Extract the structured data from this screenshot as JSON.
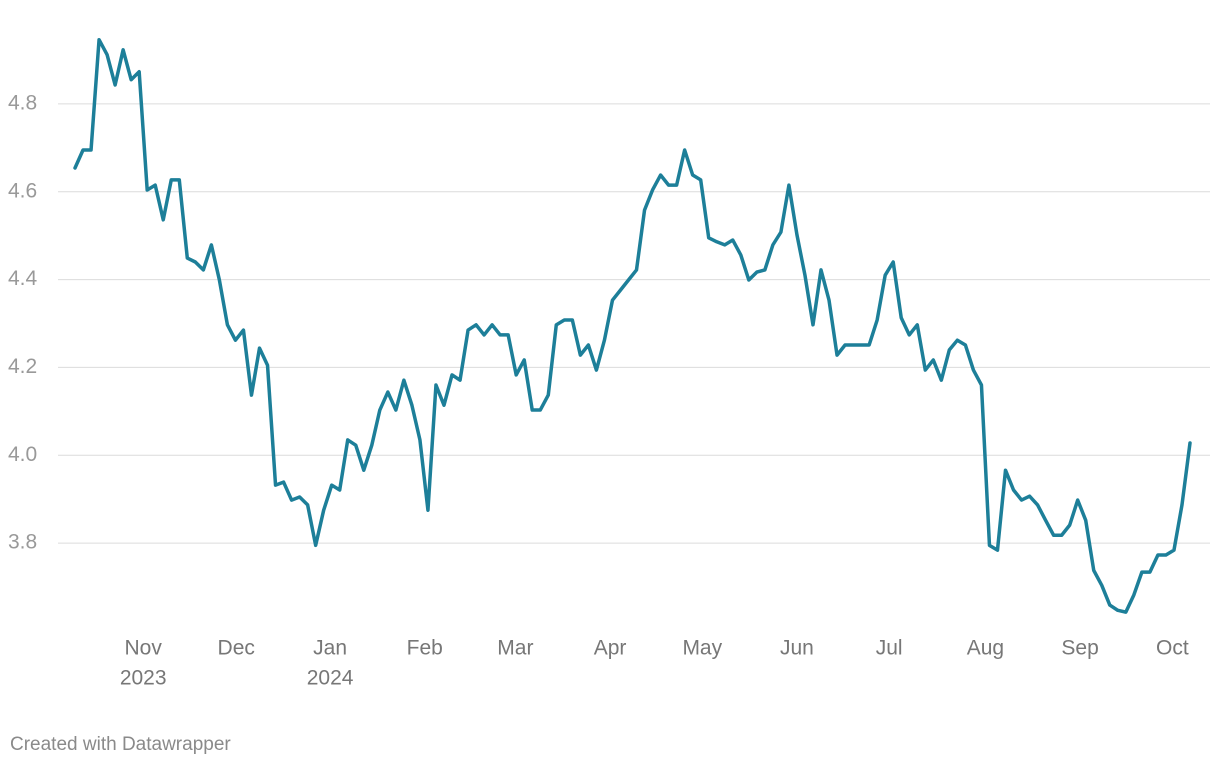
{
  "chart_data": {
    "type": "line",
    "footer": "Created with Datawrapper",
    "series": [
      {
        "color": "#1d7f99",
        "values": [
          4.654,
          4.695,
          4.695,
          4.946,
          4.912,
          4.843,
          4.923,
          4.855,
          4.873,
          4.604,
          4.615,
          4.536,
          4.627,
          4.627,
          4.449,
          4.44,
          4.422,
          4.479,
          4.399,
          4.297,
          4.262,
          4.285,
          4.137,
          4.244,
          4.205,
          3.932,
          3.939,
          3.898,
          3.905,
          3.887,
          3.795,
          3.875,
          3.932,
          3.921,
          4.035,
          4.023,
          3.966,
          4.023,
          4.103,
          4.144,
          4.103,
          4.171,
          4.114,
          4.035,
          3.875,
          4.16,
          4.114,
          4.183,
          4.171,
          4.285,
          4.297,
          4.274,
          4.297,
          4.274,
          4.274,
          4.183,
          4.217,
          4.103,
          4.103,
          4.137,
          4.297,
          4.308,
          4.308,
          4.228,
          4.251,
          4.194,
          4.262,
          4.353,
          4.376,
          4.399,
          4.422,
          4.558,
          4.604,
          4.638,
          4.615,
          4.615,
          4.695,
          4.638,
          4.627,
          4.495,
          4.486,
          4.479,
          4.49,
          4.456,
          4.399,
          4.417,
          4.422,
          4.479,
          4.508,
          4.615,
          4.502,
          4.41,
          4.297,
          4.422,
          4.353,
          4.228,
          4.251,
          4.251,
          4.251,
          4.251,
          4.308,
          4.41,
          4.44,
          4.313,
          4.274,
          4.297,
          4.194,
          4.217,
          4.171,
          4.24,
          4.262,
          4.251,
          4.194,
          4.16,
          3.795,
          3.784,
          3.966,
          3.921,
          3.898,
          3.907,
          3.887,
          3.852,
          3.818,
          3.818,
          3.841,
          3.898,
          3.852,
          3.738,
          3.704,
          3.659,
          3.647,
          3.643,
          3.682,
          3.734,
          3.734,
          3.773,
          3.773,
          3.784,
          3.887,
          4.028
        ]
      }
    ],
    "xlim": [
      0,
      139
    ],
    "xticks": [
      {
        "value": 8.5,
        "label": "Nov",
        "year": "2023"
      },
      {
        "value": 20.1,
        "label": "Dec"
      },
      {
        "value": 31.8,
        "label": "Jan",
        "year": "2024"
      },
      {
        "value": 43.6,
        "label": "Feb"
      },
      {
        "value": 54.9,
        "label": "Mar"
      },
      {
        "value": 66.7,
        "label": "Apr"
      },
      {
        "value": 78.2,
        "label": "May"
      },
      {
        "value": 90.0,
        "label": "Jun"
      },
      {
        "value": 101.5,
        "label": "Jul"
      },
      {
        "value": 113.5,
        "label": "Aug"
      },
      {
        "value": 125.3,
        "label": "Sep"
      },
      {
        "value": 136.8,
        "label": "Oct"
      }
    ],
    "ylim": [
      3.6,
      5.0
    ],
    "yticks": [
      3.8,
      {
        "value": 4,
        "label": "4.0"
      },
      4.2,
      4.4,
      4.6,
      4.8
    ],
    "grid": true
  }
}
